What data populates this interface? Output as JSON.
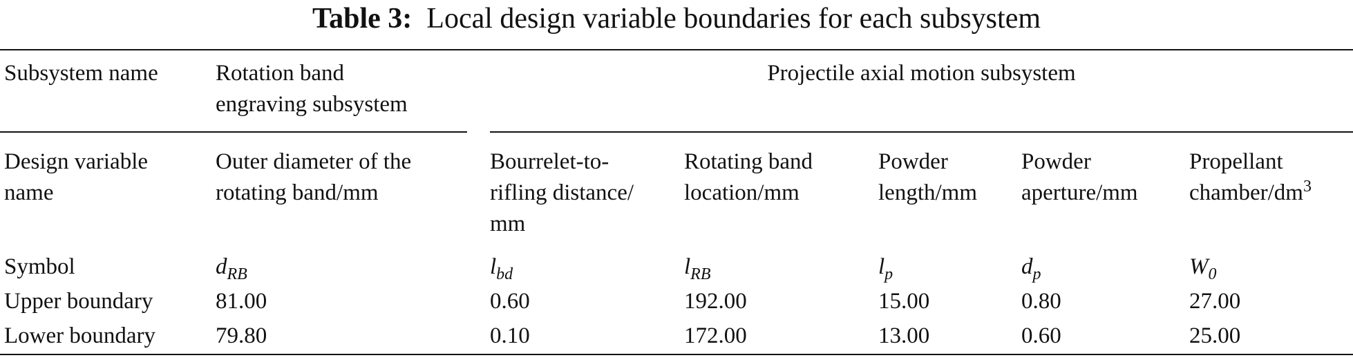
{
  "title": {
    "label": "Table 3:",
    "text": "Local design variable boundaries for each subsystem"
  },
  "table": {
    "group_header": {
      "label": "Subsystem name",
      "groups": [
        [
          "Rotation band",
          "engraving subsystem"
        ],
        [
          "Projectile axial motion subsystem"
        ]
      ]
    },
    "column_header": {
      "label": [
        "Design variable",
        "name"
      ],
      "columns": [
        {
          "lines": [
            "Outer diameter of the",
            "rotating band/mm"
          ]
        },
        {
          "lines": [
            "Bourrelet-to-",
            "rifling distance/",
            "mm"
          ]
        },
        {
          "lines": [
            "Rotating band",
            "location/mm"
          ]
        },
        {
          "lines": [
            "Powder",
            "length/mm"
          ]
        },
        {
          "lines": [
            "Powder",
            "aperture/mm"
          ]
        },
        {
          "lines": [
            "Propellant",
            "chamber/dm"
          ],
          "sup": "3"
        }
      ]
    },
    "symbol_row": {
      "label": "Symbol",
      "cells": [
        {
          "base": "d",
          "sub": "RB"
        },
        {
          "base": "l",
          "sub": "bd"
        },
        {
          "base": "l",
          "sub": "RB"
        },
        {
          "base": "l",
          "sub": "p"
        },
        {
          "base": "d",
          "sub": "p"
        },
        {
          "base": "W",
          "sub": "0"
        }
      ]
    },
    "rows": [
      {
        "label": "Upper boundary",
        "cells": [
          "81.00",
          "0.60",
          "192.00",
          "15.00",
          "0.80",
          "27.00"
        ]
      },
      {
        "label": "Lower boundary",
        "cells": [
          "79.80",
          "0.10",
          "172.00",
          "13.00",
          "0.60",
          "25.00"
        ]
      }
    ]
  }
}
